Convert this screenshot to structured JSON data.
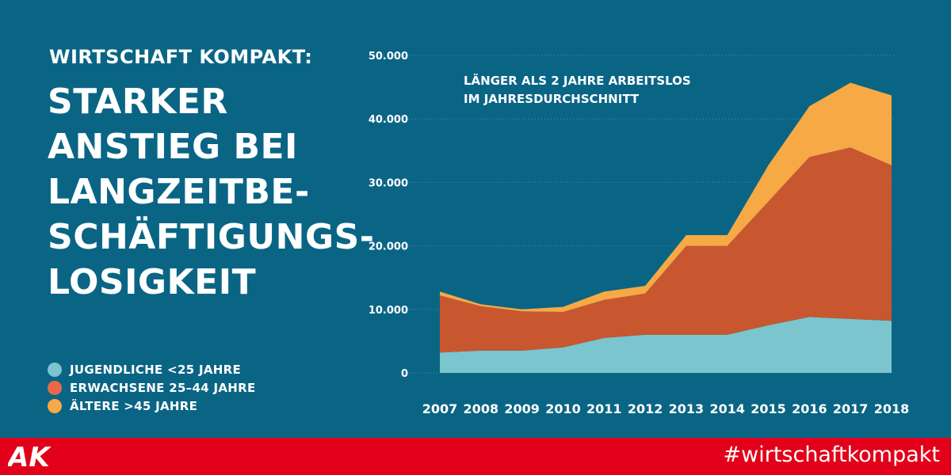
{
  "header": {
    "kicker": "WIRTSCHAFT KOMPAKT:",
    "headline_lines": [
      "STARKER",
      "ANSTIEG BEI",
      "LANGZEITBE-",
      "SCHÄFTIGUNGS-",
      "LOSIGKEIT"
    ]
  },
  "legend": {
    "items": [
      {
        "label": "JUGENDLICHE <25 JAHRE",
        "color": "#7ac5ce"
      },
      {
        "label": "ERWACHSENE 25–44 JAHRE",
        "color": "#e8694a"
      },
      {
        "label": "ÄLTERE >45 JAHRE",
        "color": "#f6a945"
      }
    ]
  },
  "footer": {
    "logo_text": "AK",
    "hashtag": "#wirtschaftkompakt"
  },
  "chart_data": {
    "type": "area",
    "stacked": true,
    "annotation_lines": [
      "LÄNGER ALS 2 JAHRE ARBEITSLOS",
      "IM JAHRESDURCHSCHNITT"
    ],
    "x": [
      "2007",
      "2008",
      "2009",
      "2010",
      "2011",
      "2012",
      "2013",
      "2014",
      "2015",
      "2016",
      "2017",
      "2018"
    ],
    "ylim": [
      0,
      50000
    ],
    "yticks": [
      0,
      10000,
      20000,
      30000,
      40000,
      50000
    ],
    "ytick_labels": [
      "0",
      "10.000",
      "20.000",
      "30.000",
      "40.000",
      "50.000"
    ],
    "grid": "horizontal",
    "series": [
      {
        "name": "JUGENDLICHE <25 JAHRE",
        "values": [
          3200,
          3500,
          3500,
          4000,
          5500,
          6000,
          6000,
          6000,
          7500,
          8800,
          8500,
          8200
        ],
        "color": "#7ac5ce"
      },
      {
        "name": "ERWACHSENE 25–44 JAHRE",
        "values": [
          9000,
          7000,
          6200,
          5600,
          6000,
          6500,
          14000,
          14000,
          19500,
          25200,
          27000,
          24500
        ],
        "color": "#c8572f"
      },
      {
        "name": "ÄLTERE >45 JAHRE",
        "values": [
          600,
          300,
          300,
          800,
          1300,
          1200,
          1700,
          1700,
          5700,
          8000,
          10200,
          11000
        ],
        "color": "#f6a945"
      }
    ]
  }
}
